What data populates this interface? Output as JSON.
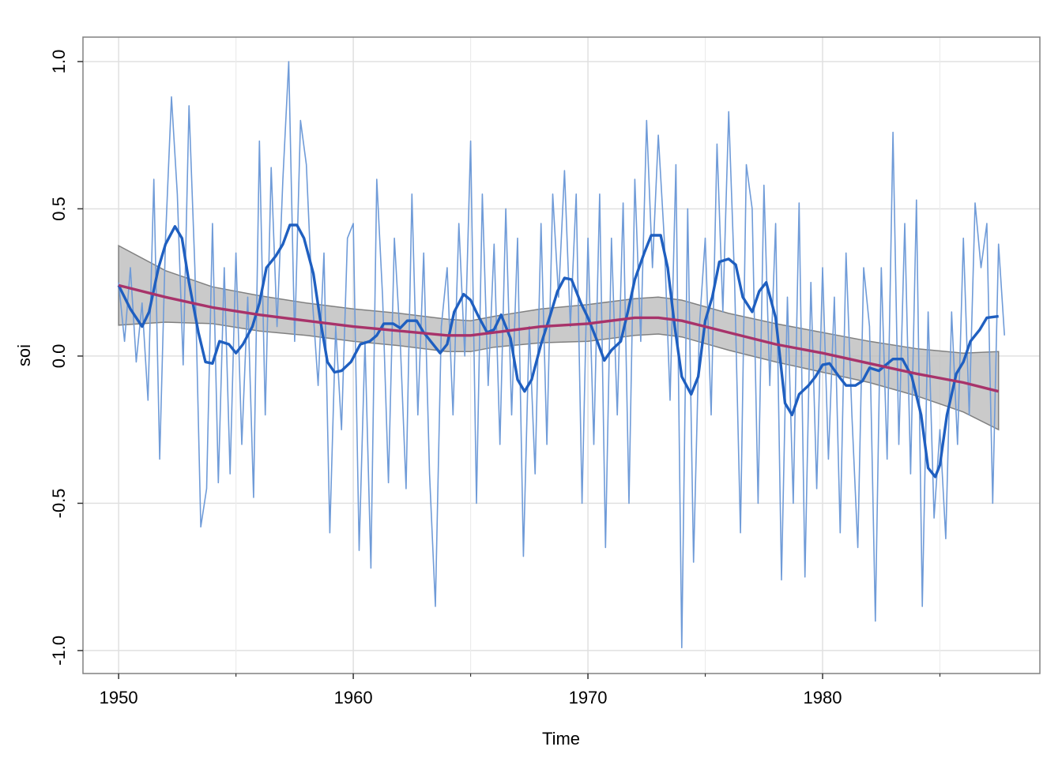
{
  "chart_data": {
    "type": "line",
    "xlabel": "Time",
    "ylabel": "soi",
    "xlim": [
      1948.48,
      1989.26
    ],
    "ylim": [
      -1.078,
      1.083
    ],
    "xticks": [
      1950,
      1960,
      1970,
      1980
    ],
    "xminor": [
      1955,
      1965,
      1975,
      1985
    ],
    "yticks": [
      {
        "value": -1,
        "label": "-1.0"
      },
      {
        "value": -0.5,
        "label": "-0.5"
      },
      {
        "value": 0,
        "label": "0.0"
      },
      {
        "value": 0.5,
        "label": "0.5"
      },
      {
        "value": 1,
        "label": "1.0"
      }
    ],
    "grid": true,
    "band": {
      "color": "#bdbdbd",
      "x": [
        1950,
        1952,
        1954,
        1956,
        1958,
        1960,
        1962,
        1964,
        1965,
        1966,
        1968,
        1970,
        1972,
        1973,
        1974,
        1976,
        1978,
        1980,
        1982,
        1984,
        1986,
        1987.5
      ],
      "lower": [
        0.105,
        0.115,
        0.11,
        0.085,
        0.07,
        0.05,
        0.035,
        0.015,
        0.015,
        0.03,
        0.045,
        0.05,
        0.07,
        0.075,
        0.065,
        0.02,
        -0.02,
        -0.055,
        -0.09,
        -0.135,
        -0.19,
        -0.25
      ],
      "upper": [
        0.375,
        0.29,
        0.235,
        0.205,
        0.18,
        0.16,
        0.145,
        0.125,
        0.12,
        0.135,
        0.16,
        0.175,
        0.195,
        0.2,
        0.19,
        0.145,
        0.11,
        0.08,
        0.05,
        0.025,
        0.01,
        0.015
      ]
    },
    "series": [
      {
        "color": "#6f9bd8",
        "line_width": 1.6,
        "x": [
          1950,
          1950.25,
          1950.5,
          1950.75,
          1951,
          1951.25,
          1951.5,
          1951.75,
          1952,
          1952.25,
          1952.5,
          1952.75,
          1953,
          1953.25,
          1953.5,
          1953.75,
          1954,
          1954.25,
          1954.5,
          1954.75,
          1955,
          1955.25,
          1955.5,
          1955.75,
          1956,
          1956.25,
          1956.5,
          1956.75,
          1957,
          1957.25,
          1957.5,
          1957.75,
          1958,
          1958.25,
          1958.5,
          1958.75,
          1959,
          1959.25,
          1959.5,
          1959.75,
          1960,
          1960.25,
          1960.5,
          1960.75,
          1961,
          1961.25,
          1961.5,
          1961.75,
          1962,
          1962.25,
          1962.5,
          1962.75,
          1963,
          1963.25,
          1963.5,
          1963.75,
          1964,
          1964.25,
          1964.5,
          1964.75,
          1965,
          1965.25,
          1965.5,
          1965.75,
          1966,
          1966.25,
          1966.5,
          1966.75,
          1967,
          1967.25,
          1967.5,
          1967.75,
          1968,
          1968.25,
          1968.5,
          1968.75,
          1969,
          1969.25,
          1969.5,
          1969.75,
          1970,
          1970.25,
          1970.5,
          1970.75,
          1971,
          1971.25,
          1971.5,
          1971.75,
          1972,
          1972.25,
          1972.5,
          1972.75,
          1973,
          1973.25,
          1973.5,
          1973.75,
          1974,
          1974.25,
          1974.5,
          1974.75,
          1975,
          1975.25,
          1975.5,
          1975.75,
          1976,
          1976.25,
          1976.5,
          1976.75,
          1977,
          1977.25,
          1977.5,
          1977.75,
          1978,
          1978.25,
          1978.5,
          1978.75,
          1979,
          1979.25,
          1979.5,
          1979.75,
          1980,
          1980.25,
          1980.5,
          1980.75,
          1981,
          1981.25,
          1981.5,
          1981.75,
          1982,
          1982.25,
          1982.5,
          1982.75,
          1983,
          1983.25,
          1983.5,
          1983.75,
          1984,
          1984.25,
          1984.5,
          1984.75,
          1985,
          1985.25,
          1985.5,
          1985.75,
          1986,
          1986.25,
          1986.5,
          1986.75,
          1987,
          1987.25,
          1987.5,
          1987.75
        ],
        "values": [
          0.25,
          0.05,
          0.3,
          -0.02,
          0.18,
          -0.15,
          0.6,
          -0.35,
          0.4,
          0.88,
          0.55,
          -0.03,
          0.85,
          0.3,
          -0.58,
          -0.45,
          0.45,
          -0.43,
          0.3,
          -0.4,
          0.35,
          -0.3,
          0.2,
          -0.48,
          0.73,
          -0.2,
          0.64,
          0.1,
          0.6,
          1.0,
          0.05,
          0.8,
          0.65,
          0.2,
          -0.1,
          0.35,
          -0.6,
          0.1,
          -0.25,
          0.4,
          0.45,
          -0.66,
          0.05,
          -0.72,
          0.6,
          0.2,
          -0.43,
          0.4,
          0.05,
          -0.45,
          0.55,
          -0.2,
          0.35,
          -0.4,
          -0.85,
          0.1,
          0.3,
          -0.2,
          0.45,
          0.0,
          0.73,
          -0.5,
          0.55,
          -0.1,
          0.38,
          -0.3,
          0.5,
          -0.2,
          0.4,
          -0.68,
          0.1,
          -0.4,
          0.45,
          -0.3,
          0.55,
          0.2,
          0.63,
          0.1,
          0.55,
          -0.5,
          0.4,
          -0.3,
          0.55,
          -0.65,
          0.4,
          -0.2,
          0.52,
          -0.5,
          0.6,
          0.05,
          0.8,
          0.3,
          0.75,
          0.4,
          -0.15,
          0.65,
          -0.99,
          0.5,
          -0.7,
          0.1,
          0.4,
          -0.2,
          0.72,
          0.15,
          0.83,
          0.25,
          -0.6,
          0.65,
          0.5,
          -0.5,
          0.58,
          -0.1,
          0.45,
          -0.76,
          0.2,
          -0.5,
          0.52,
          -0.75,
          0.25,
          -0.45,
          0.3,
          -0.35,
          0.2,
          -0.6,
          0.35,
          -0.2,
          -0.65,
          0.3,
          0.1,
          -0.9,
          0.3,
          -0.35,
          0.76,
          -0.3,
          0.45,
          -0.4,
          0.53,
          -0.85,
          0.15,
          -0.55,
          -0.25,
          -0.62,
          0.15,
          -0.3,
          0.4,
          -0.2,
          0.52,
          0.3,
          0.45,
          -0.5,
          0.38,
          0.07
        ]
      },
      {
        "color": "#1f5fc0",
        "line_width": 3.4,
        "x": [
          1950,
          1950.5,
          1951,
          1951.3,
          1951.7,
          1952,
          1952.4,
          1952.7,
          1953,
          1953.4,
          1953.7,
          1954,
          1954.3,
          1954.7,
          1955,
          1955.3,
          1955.7,
          1956,
          1956.3,
          1956.7,
          1957,
          1957.3,
          1957.6,
          1957.9,
          1958.3,
          1958.6,
          1958.9,
          1959.2,
          1959.5,
          1959.9,
          1960.3,
          1960.7,
          1961,
          1961.3,
          1961.7,
          1962,
          1962.3,
          1962.7,
          1963,
          1963.3,
          1963.7,
          1964,
          1964.3,
          1964.7,
          1965,
          1965.3,
          1965.7,
          1966,
          1966.3,
          1966.7,
          1967,
          1967.3,
          1967.6,
          1968,
          1968.4,
          1968.7,
          1969,
          1969.3,
          1969.7,
          1970,
          1970.4,
          1970.7,
          1971,
          1971.4,
          1971.7,
          1972,
          1972.4,
          1972.7,
          1973.1,
          1973.4,
          1973.7,
          1974,
          1974.4,
          1974.7,
          1975,
          1975.3,
          1975.6,
          1976,
          1976.3,
          1976.6,
          1977,
          1977.3,
          1977.6,
          1978,
          1978.4,
          1978.7,
          1979,
          1979.4,
          1979.7,
          1980,
          1980.3,
          1980.7,
          1981,
          1981.4,
          1981.7,
          1982,
          1982.4,
          1982.7,
          1983,
          1983.4,
          1983.8,
          1984.2,
          1984.5,
          1984.8,
          1985,
          1985.3,
          1985.7,
          1986,
          1986.3,
          1986.7,
          1987,
          1987.5
        ],
        "values": [
          0.24,
          0.16,
          0.1,
          0.15,
          0.3,
          0.38,
          0.44,
          0.4,
          0.25,
          0.08,
          -0.02,
          -0.025,
          0.05,
          0.04,
          0.01,
          0.04,
          0.1,
          0.18,
          0.3,
          0.34,
          0.38,
          0.445,
          0.445,
          0.4,
          0.28,
          0.12,
          -0.02,
          -0.055,
          -0.05,
          -0.02,
          0.04,
          0.05,
          0.07,
          0.11,
          0.11,
          0.095,
          0.12,
          0.12,
          0.08,
          0.05,
          0.01,
          0.04,
          0.15,
          0.21,
          0.19,
          0.14,
          0.08,
          0.09,
          0.14,
          0.06,
          -0.08,
          -0.12,
          -0.08,
          0.04,
          0.14,
          0.22,
          0.265,
          0.26,
          0.18,
          0.13,
          0.05,
          -0.015,
          0.02,
          0.05,
          0.15,
          0.26,
          0.35,
          0.41,
          0.41,
          0.3,
          0.1,
          -0.07,
          -0.13,
          -0.07,
          0.12,
          0.2,
          0.32,
          0.33,
          0.31,
          0.2,
          0.15,
          0.22,
          0.25,
          0.13,
          -0.16,
          -0.2,
          -0.13,
          -0.1,
          -0.07,
          -0.03,
          -0.025,
          -0.07,
          -0.1,
          -0.1,
          -0.085,
          -0.04,
          -0.05,
          -0.03,
          -0.01,
          -0.01,
          -0.07,
          -0.2,
          -0.38,
          -0.41,
          -0.37,
          -0.2,
          -0.06,
          -0.02,
          0.05,
          0.09,
          0.13,
          0.135
        ]
      },
      {
        "color": "#a8336a",
        "line_width": 3.4,
        "x": [
          1950,
          1952,
          1954,
          1956,
          1958,
          1960,
          1962,
          1964,
          1965,
          1966,
          1968,
          1970,
          1972,
          1973,
          1974,
          1976,
          1978,
          1980,
          1982,
          1984,
          1986,
          1987.5
        ],
        "values": [
          0.24,
          0.2,
          0.165,
          0.14,
          0.12,
          0.1,
          0.085,
          0.07,
          0.07,
          0.08,
          0.1,
          0.11,
          0.13,
          0.13,
          0.12,
          0.08,
          0.04,
          0.01,
          -0.025,
          -0.06,
          -0.09,
          -0.12
        ]
      }
    ]
  }
}
